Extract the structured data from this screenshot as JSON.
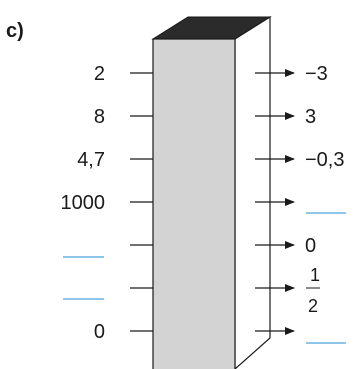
{
  "part_label": "c)",
  "inputs": [
    "2",
    "8",
    "4,7",
    "1000",
    "",
    "",
    "0"
  ],
  "outputs": [
    "−3",
    "3",
    "−0,3",
    "",
    "0",
    "",
    ""
  ],
  "output_fraction": {
    "numerator": "1",
    "denominator": "2"
  },
  "colors": {
    "blank_line": "#4aa3df",
    "box_front": "#d3d3d3",
    "box_top": "#2b2b2b",
    "box_side": "#ffffff",
    "ink": "#1a1a1a"
  }
}
